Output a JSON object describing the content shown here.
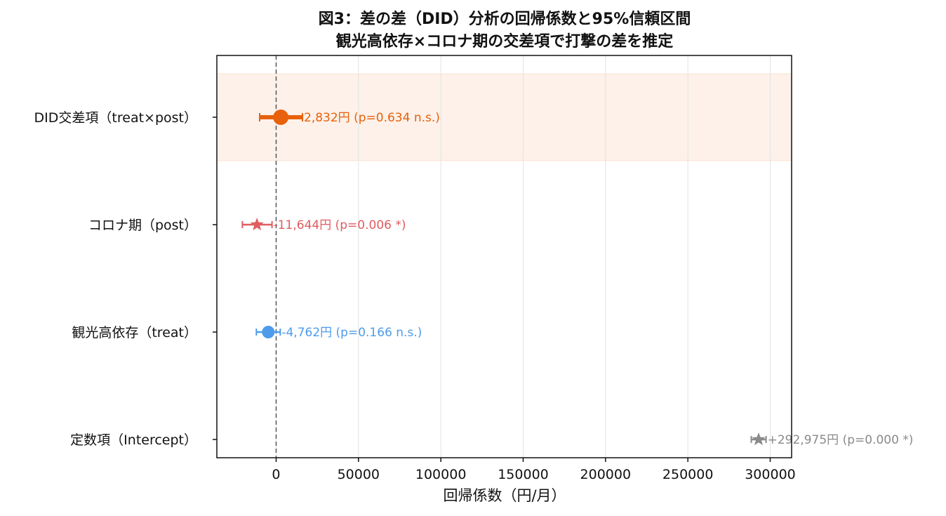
{
  "chart_data": {
    "type": "forest",
    "title": "図3：差の差（DID）分析の回帰係数と95%信頼区間",
    "subtitle": "観光高依存×コロナ期の交差項で打撃の差を推定",
    "xlabel": "回帰係数（円/月）",
    "ylabel": "",
    "xlim": [
      -36000,
      313000
    ],
    "x_ticks": [
      0,
      50000,
      100000,
      150000,
      200000,
      250000,
      300000
    ],
    "x_tick_labels": [
      "0",
      "50000",
      "100000",
      "150000",
      "200000",
      "250000",
      "300000"
    ],
    "grid": "vertical",
    "reference_line": 0,
    "highlight_term": "DID交差項（treat×post）",
    "terms": [
      {
        "label": "DID交差項（treat×post）",
        "coef": 2832,
        "ci_low": -10000,
        "ci_high": 16000,
        "annotation": "2,832円 (p=0.634 n.s.)",
        "color": "#E8610C",
        "marker": "circle",
        "emphasis": true
      },
      {
        "label": "コロナ期（post）",
        "coef": -11644,
        "ci_low": -20500,
        "ci_high": -2500,
        "annotation": "-11,644円 (p=0.006 *)",
        "color": "#E05C60",
        "marker": "star",
        "emphasis": false
      },
      {
        "label": "観光高依存（treat）",
        "coef": -4762,
        "ci_low": -12000,
        "ci_high": 2500,
        "annotation": "-4,762円 (p=0.166 n.s.)",
        "color": "#4E9BEB",
        "marker": "circle",
        "emphasis": false
      },
      {
        "label": "定数項（Intercept）",
        "coef": 292975,
        "ci_low": 288500,
        "ci_high": 297500,
        "annotation": "+292,975円 (p=0.000 *)",
        "color": "#8A8A8A",
        "marker": "star",
        "emphasis": false
      }
    ]
  }
}
